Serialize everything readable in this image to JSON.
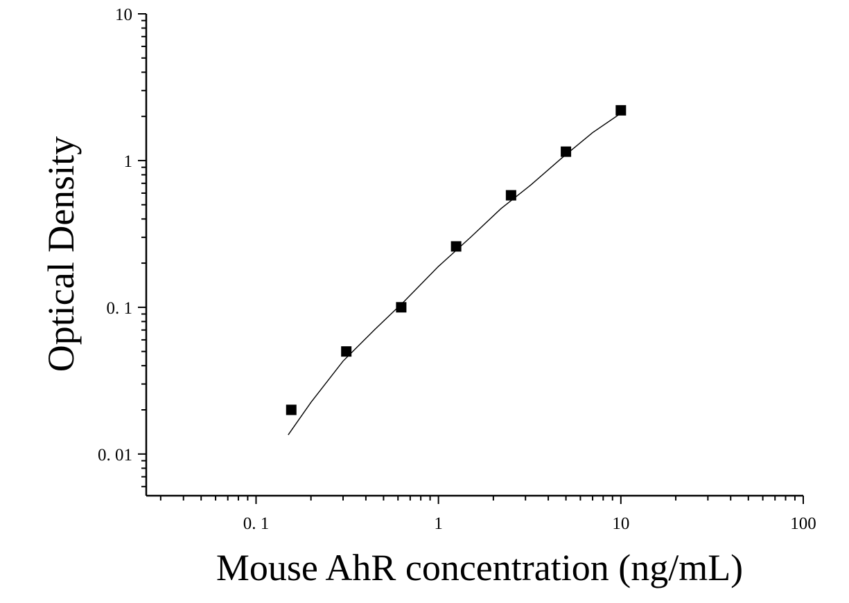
{
  "chart_data": {
    "type": "scatter",
    "title": "",
    "xlabel": "Mouse AhR concentration (ng/mL)",
    "ylabel": "Optical Density",
    "x_scale": "log",
    "y_scale": "log",
    "xlim": [
      0.025,
      100
    ],
    "ylim": [
      0.0052,
      10
    ],
    "x_tick_labels": [
      {
        "value": 0.1,
        "label": "0. 1"
      },
      {
        "value": 1,
        "label": "1"
      },
      {
        "value": 10,
        "label": "10"
      },
      {
        "value": 100,
        "label": "100"
      }
    ],
    "y_tick_labels": [
      {
        "value": 0.01,
        "label": "0. 01"
      },
      {
        "value": 0.1,
        "label": "0. 1"
      },
      {
        "value": 1,
        "label": "1"
      },
      {
        "value": 10,
        "label": "10"
      }
    ],
    "grid": false,
    "legend": "none",
    "series": [
      {
        "kind": "points",
        "marker": "square",
        "color": "#000000",
        "x": [
          0.156,
          0.3125,
          0.625,
          1.25,
          2.5,
          5,
          10
        ],
        "y": [
          0.02,
          0.05,
          0.1,
          0.26,
          0.58,
          1.15,
          2.2
        ]
      },
      {
        "kind": "fit-curve",
        "color": "#000000",
        "x": [
          0.15,
          0.2,
          0.3,
          0.45,
          0.65,
          1.0,
          1.5,
          2.2,
          3.2,
          4.7,
          7.0,
          10.0
        ],
        "y": [
          0.0135,
          0.0225,
          0.043,
          0.071,
          0.11,
          0.19,
          0.3,
          0.47,
          0.68,
          1.03,
          1.55,
          2.1
        ]
      }
    ]
  }
}
